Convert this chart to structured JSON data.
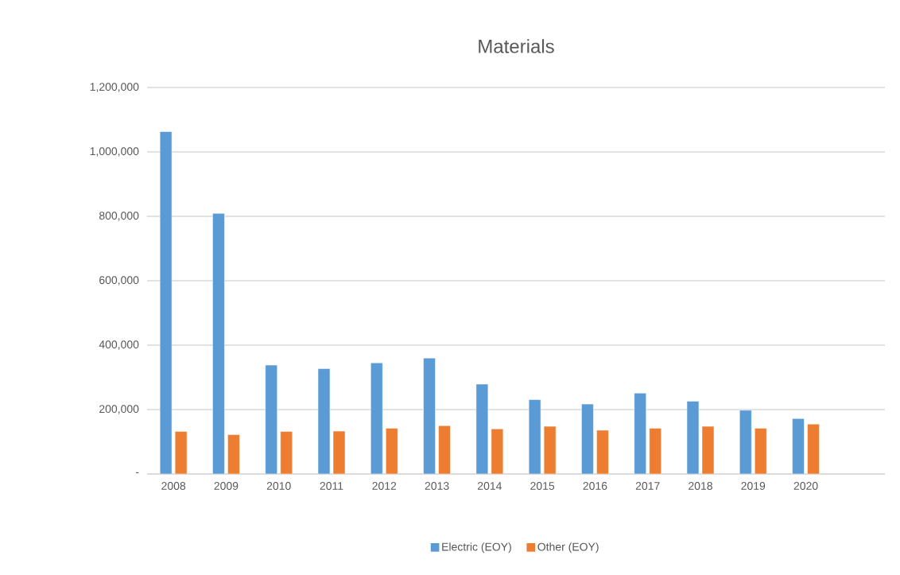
{
  "chart_data": {
    "type": "bar",
    "title": "Materials",
    "categories": [
      "2008",
      "2009",
      "2010",
      "2011",
      "2012",
      "2013",
      "2014",
      "2015",
      "2016",
      "2017",
      "2018",
      "2019",
      "2020",
      null
    ],
    "series": [
      {
        "name": "Electric (EOY)",
        "color": "#5b9bd5",
        "values": [
          1063000,
          809000,
          338000,
          327000,
          345000,
          360000,
          279000,
          231000,
          217000,
          251000,
          226000,
          198000,
          172000,
          null
        ]
      },
      {
        "name": "Other (EOY)",
        "color": "#ed7d31",
        "values": [
          132000,
          122000,
          132000,
          133000,
          142000,
          150000,
          140000,
          148000,
          136000,
          142000,
          148000,
          142000,
          155000,
          null
        ]
      }
    ],
    "ylim": [
      0,
      1200000
    ],
    "yticks": [
      {
        "value": 0,
        "label": "-"
      },
      {
        "value": 200000,
        "label": "200,000"
      },
      {
        "value": 400000,
        "label": "400,000"
      },
      {
        "value": 600000,
        "label": "600,000"
      },
      {
        "value": 800000,
        "label": "800,000"
      },
      {
        "value": 1000000,
        "label": "1,000,000"
      },
      {
        "value": 1200000,
        "label": "1,200,000"
      }
    ],
    "grid": "y",
    "legend": "bottom"
  }
}
